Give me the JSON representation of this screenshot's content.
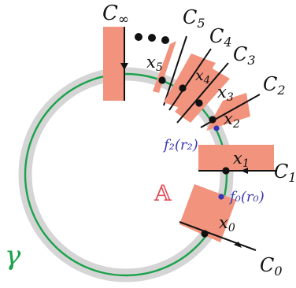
{
  "labels": {
    "c_inf": "C",
    "c_inf_sub": "∞",
    "c5": "C",
    "c5_sub": "5",
    "c4": "C",
    "c4_sub": "4",
    "c3": "C",
    "c3_sub": "3",
    "c2": "C",
    "c2_sub": "2",
    "c1": "C",
    "c1_sub": "1",
    "c0": "C",
    "c0_sub": "0",
    "x5": "x",
    "x5_sub": "5",
    "x4": "x",
    "x4_sub": "4",
    "x3": "x",
    "x3_sub": "3",
    "x2": "x",
    "x2_sub": "2",
    "x1": "x",
    "x1_sub": "1",
    "x0": "x",
    "x0_sub": "0",
    "f2r2": "f₂(r₂)",
    "f0r0": "f₀(r₀)",
    "annulus": "𝔸",
    "gamma": "γ"
  },
  "colors": {
    "annulus": "#d5d5d5",
    "curve": "#1aa24c",
    "patch": "#f2937d",
    "point": "#111111",
    "marked_point": "#3535b5",
    "blue_text": "#3b3bb0",
    "red_text": "#e0505a"
  }
}
